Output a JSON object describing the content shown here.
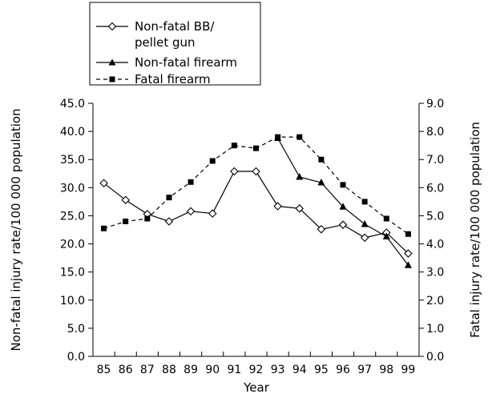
{
  "chart_data": {
    "type": "line",
    "x": [
      "85",
      "86",
      "87",
      "88",
      "89",
      "90",
      "91",
      "92",
      "93",
      "94",
      "95",
      "96",
      "97",
      "98",
      "99"
    ],
    "xlabel": "Year",
    "ylabel": "Non-fatal injury rate/100 000 population",
    "y2label": "Fatal injury rate/100 000 population",
    "ylim": [
      0,
      45
    ],
    "y2lim": [
      0,
      9
    ],
    "yticks": [
      "0.0",
      "5.0",
      "10.0",
      "15.0",
      "20.0",
      "25.0",
      "30.0",
      "35.0",
      "40.0",
      "45.0"
    ],
    "y2ticks": [
      "0.0",
      "1.0",
      "2.0",
      "3.0",
      "4.0",
      "5.0",
      "6.0",
      "7.0",
      "8.0",
      "9.0"
    ],
    "grid": false,
    "legend_position": "top-left",
    "series": [
      {
        "name": "Non-fatal BB/\npellet gun",
        "axis": "left",
        "marker": "diamond-open",
        "line": "solid",
        "values": [
          30.8,
          27.8,
          25.3,
          24.0,
          25.8,
          25.4,
          32.9,
          32.9,
          26.7,
          26.3,
          22.6,
          23.4,
          21.1,
          22.0,
          18.3
        ]
      },
      {
        "name": "Non-fatal firearm",
        "axis": "left",
        "marker": "triangle-filled",
        "line": "solid",
        "x_start": "93",
        "values": [
          null,
          null,
          null,
          null,
          null,
          null,
          null,
          null,
          38.8,
          31.9,
          30.9,
          26.6,
          23.5,
          21.3,
          16.2
        ]
      },
      {
        "name": "Fatal firearm",
        "axis": "right",
        "marker": "square-filled",
        "line": "dashed",
        "values": [
          4.55,
          4.8,
          4.9,
          5.65,
          6.2,
          6.95,
          7.5,
          7.4,
          7.8,
          7.8,
          7.0,
          6.1,
          5.5,
          4.9,
          4.35
        ]
      }
    ]
  }
}
